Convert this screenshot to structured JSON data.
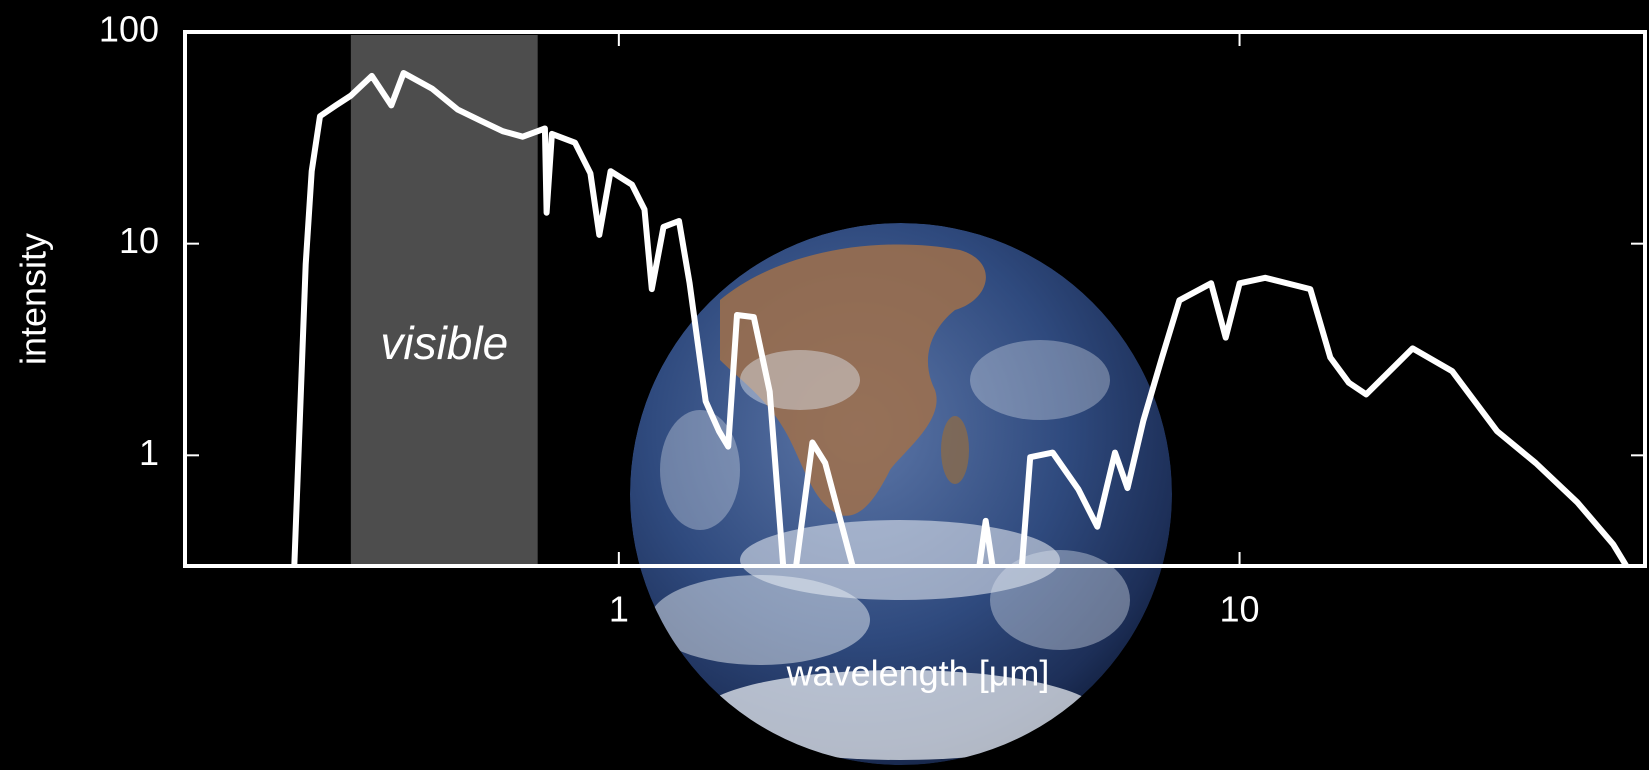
{
  "chart_data": {
    "type": "line",
    "xlabel": "wavelength [μm]",
    "ylabel": "intensity",
    "xscale": "log",
    "yscale": "log",
    "xlim": [
      0.2,
      45
    ],
    "ylim": [
      0.3,
      100
    ],
    "xticks": [
      1,
      10
    ],
    "yticks": [
      1,
      10,
      100
    ],
    "color": "#ffffff",
    "annotation": {
      "text": "visible",
      "range": [
        0.37,
        0.74
      ],
      "color": "#4d4d4d"
    },
    "x": [
      0.3,
      0.313,
      0.32,
      0.33,
      0.35,
      0.37,
      0.4,
      0.43,
      0.45,
      0.5,
      0.55,
      0.6,
      0.65,
      0.7,
      0.76,
      0.765,
      0.78,
      0.85,
      0.9,
      0.93,
      0.97,
      1.05,
      1.1,
      1.13,
      1.18,
      1.25,
      1.3,
      1.38,
      1.45,
      1.5,
      1.55,
      1.65,
      1.75,
      1.84,
      1.88,
      1.93,
      2.05,
      2.15,
      2.38,
      3.0,
      3.81,
      3.9,
      4.0,
      4.2,
      4.46,
      4.6,
      5.0,
      5.5,
      5.9,
      6.3,
      6.6,
      7.0,
      7.5,
      8.0,
      9.0,
      9.5,
      10.0,
      11,
      13,
      14,
      15,
      16,
      19,
      22,
      26,
      30,
      35,
      40,
      42
    ],
    "values": [
      0.3,
      8,
      22,
      40,
      45,
      50,
      62,
      45,
      64,
      54,
      43,
      38,
      34,
      32,
      35,
      14,
      33,
      30,
      21.5,
      11,
      22,
      19,
      14.5,
      6.1,
      12,
      12.8,
      6.5,
      1.8,
      1.3,
      1.1,
      4.6,
      4.5,
      2.0,
      0.3,
      null,
      0.3,
      1.15,
      0.92,
      0.3,
      null,
      0.3,
      0.49,
      0.3,
      null,
      0.3,
      0.98,
      1.03,
      0.69,
      0.46,
      1.03,
      0.7,
      1.46,
      2.9,
      5.4,
      6.5,
      3.6,
      6.5,
      6.9,
      6.1,
      2.9,
      2.2,
      1.94,
      3.2,
      2.5,
      1.3,
      0.92,
      0.6,
      0.38,
      0.3
    ]
  }
}
